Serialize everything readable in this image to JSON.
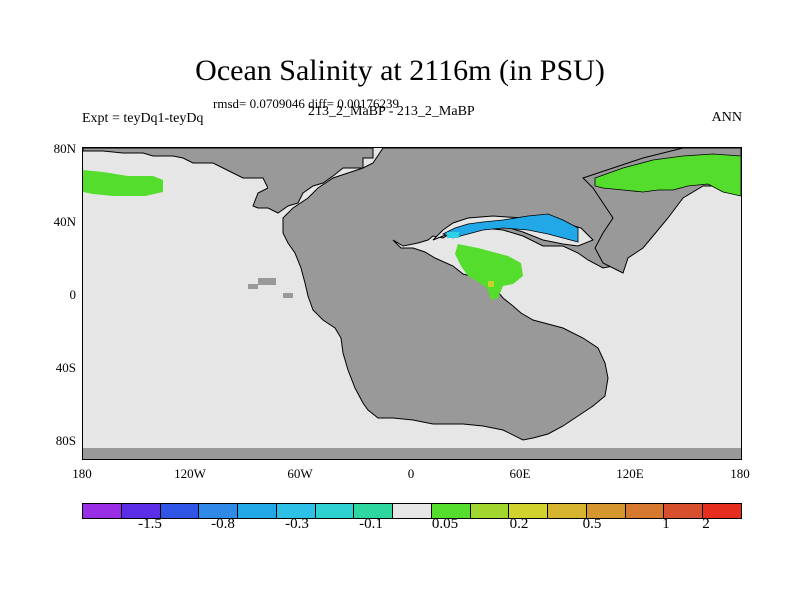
{
  "title": "Ocean Salinity at 2116m (in PSU)",
  "stats": "rmsd= 0.0709046 diff= 0.00176239",
  "experiment": "Expt = teyDq1-teyDq",
  "comparison": "213_2_MaBP - 213_2_MaBP",
  "season": "ANN",
  "lat_labels": [
    "80N",
    "40N",
    "0",
    "40S",
    "80S"
  ],
  "lon_labels": [
    "180",
    "120W",
    "60W",
    "0",
    "60E",
    "120E",
    "180"
  ],
  "colors": {
    "land": "#999999",
    "ocean_neutral": "#e6e6e6",
    "positive_green": "#55dd2e",
    "negative_blue": "#22a8e6",
    "negative_cyan": "#2ed0e6",
    "positive_yellow": "#c8d22e"
  },
  "colorbar": {
    "colors": [
      "#9a2ee6",
      "#5a2ee6",
      "#2e55e6",
      "#2e8ae6",
      "#22a8e6",
      "#2ec0e6",
      "#2ed0d0",
      "#2ed6a0",
      "#e6e6e6",
      "#55dd2e",
      "#a0d62e",
      "#d2d22e",
      "#d6b42e",
      "#d6962e",
      "#d6782e",
      "#d6502e",
      "#e62e1e"
    ],
    "labels": [
      "-1.5",
      "-0.8",
      "-0.3",
      "-0.1",
      "0.05",
      "0.2",
      "0.5",
      "1",
      "2"
    ]
  },
  "regions": [
    "land-masses",
    "north-atlantic-green-anomaly",
    "arctic-siberia-green-anomaly",
    "tethys-blue-anomaly",
    "tethys-green-anomaly"
  ]
}
